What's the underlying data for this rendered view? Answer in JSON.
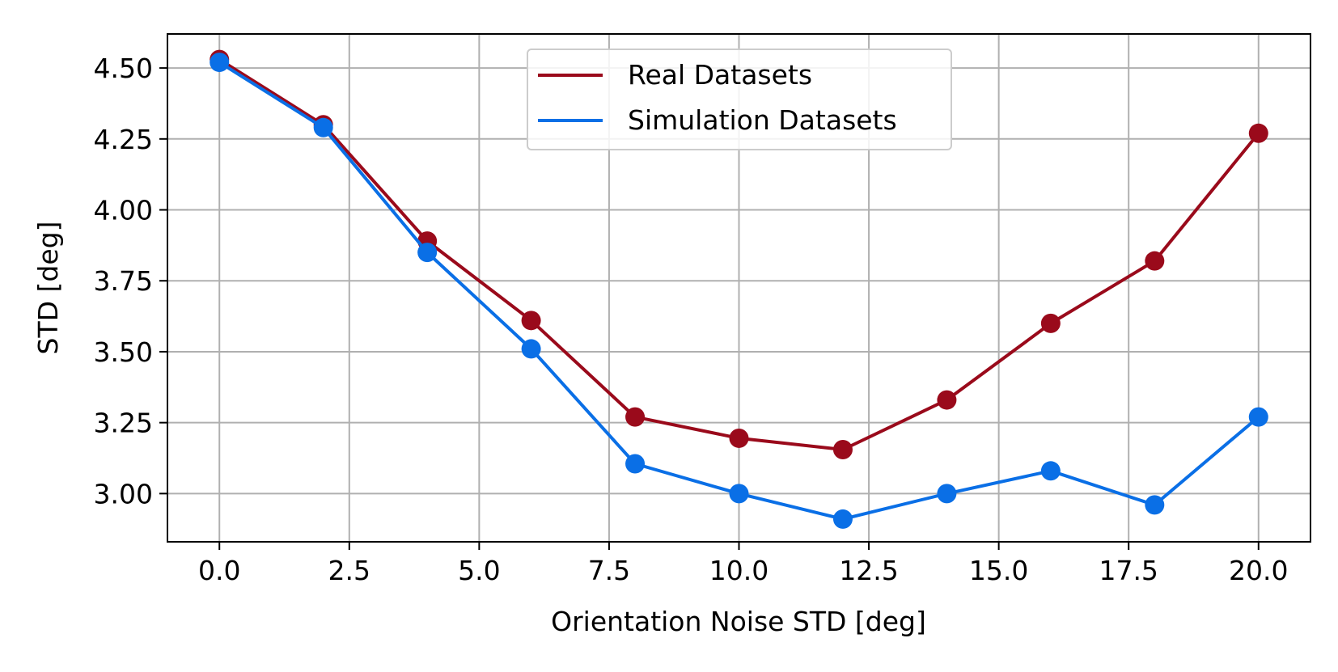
{
  "chart_data": {
    "type": "line",
    "title": "",
    "xlabel": "Orientation Noise STD [deg]",
    "ylabel": "STD [deg]",
    "xlim": [
      -1.0,
      21.0
    ],
    "ylim": [
      2.83,
      4.62
    ],
    "xticks": [
      0.0,
      2.5,
      5.0,
      7.5,
      10.0,
      12.5,
      15.0,
      17.5,
      20.0
    ],
    "xtick_labels": [
      "0.0",
      "2.5",
      "5.0",
      "7.5",
      "10.0",
      "12.5",
      "15.0",
      "17.5",
      "20.0"
    ],
    "yticks": [
      3.0,
      3.25,
      3.5,
      3.75,
      4.0,
      4.25,
      4.5
    ],
    "ytick_labels": [
      "3.00",
      "3.25",
      "3.50",
      "3.75",
      "4.00",
      "4.25",
      "4.50"
    ],
    "grid": true,
    "legend_position": "top-center",
    "x": [
      0,
      2,
      4,
      6,
      8,
      10,
      12,
      14,
      16,
      18,
      20
    ],
    "series": [
      {
        "name": "Real Datasets",
        "color": "#9a0a1b",
        "values": [
          4.53,
          4.3,
          3.89,
          3.61,
          3.27,
          3.195,
          3.155,
          3.33,
          3.6,
          3.82,
          4.27
        ]
      },
      {
        "name": "Simulation Datasets",
        "color": "#0a6fe6",
        "values": [
          4.52,
          4.29,
          3.85,
          3.51,
          3.105,
          3.0,
          2.91,
          3.0,
          3.08,
          2.96,
          3.27
        ]
      }
    ]
  }
}
